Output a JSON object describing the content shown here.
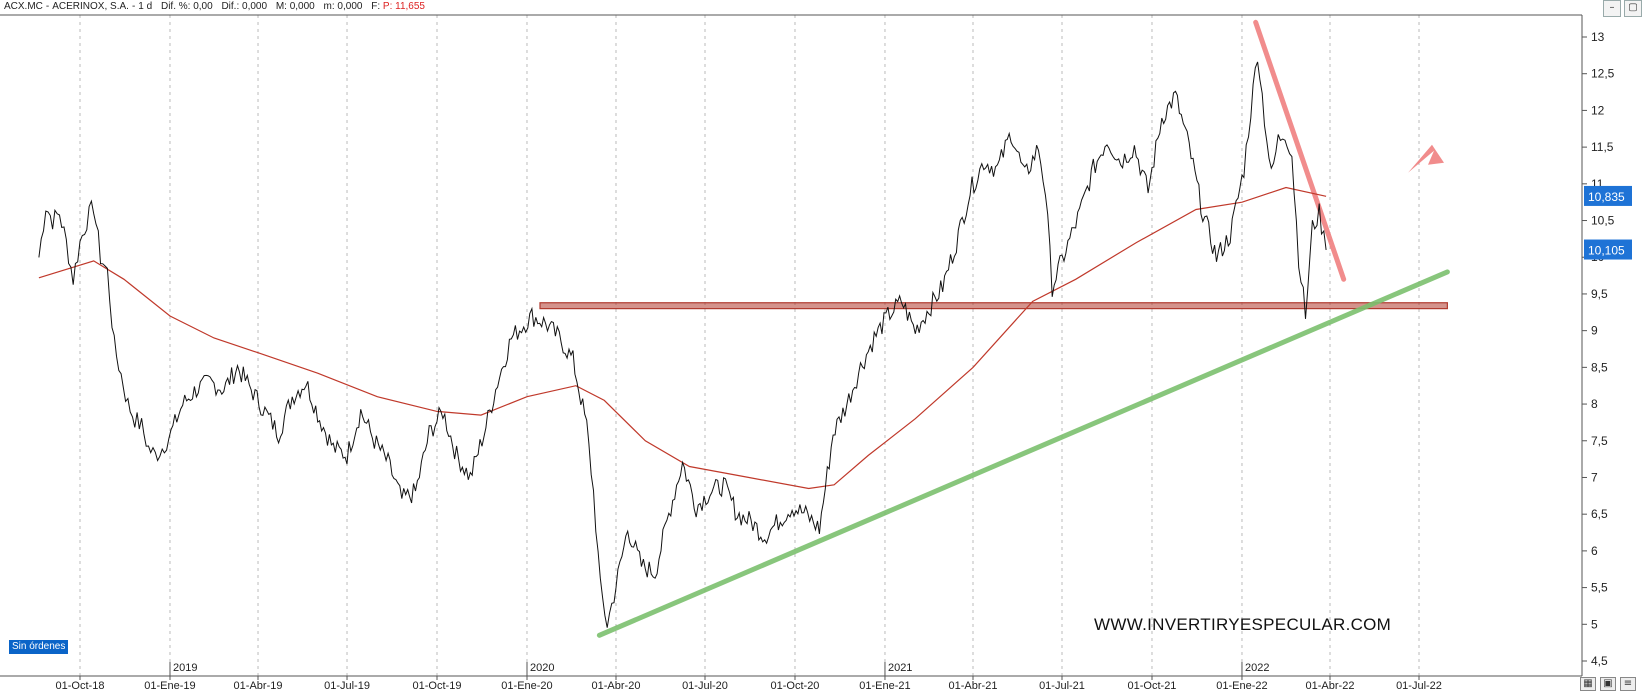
{
  "header": {
    "symbol": "ACX.MC",
    "name": "ACERINOX, S.A.",
    "timeframe": "1 d",
    "dif_pct": "Dif. %: 0,00",
    "dif": "Dif.: 0,000",
    "m": "M: 0,000",
    "m_lower": "m: 0,000",
    "f": "F:",
    "last": "P: 11,655"
  },
  "window_buttons": [
    "–",
    "▢"
  ],
  "badge": "Sin órdenes",
  "watermark": "WWW.INVERTIRYESPECULAR.COM",
  "price_labels": {
    "ma": "10,835",
    "last": "10,105"
  },
  "colors": {
    "price": "#111111",
    "ma": "#c0392b",
    "support_line": "#b03a2e",
    "downtrend": "#f08080",
    "uptrend": "#7cc06e",
    "label_bg": "#1e73d6"
  },
  "chart_data": {
    "type": "line",
    "title": "ACX.MC - ACERINOX, S.A. - 1 d",
    "x_ticks": [
      "01-Oct-18",
      "01-Ene-19",
      "01-Abr-19",
      "01-Jul-19",
      "01-Oct-19",
      "01-Ene-20",
      "01-Abr-20",
      "01-Jul-20",
      "01-Oct-20",
      "01-Ene-21",
      "01-Abr-21",
      "01-Jul-21",
      "01-Oct-21",
      "01-Ene-22",
      "01-Abr-22",
      "01-Jul-22"
    ],
    "year_markers": [
      "2019",
      "2020",
      "2021",
      "2022"
    ],
    "y_ticks": [
      "13",
      "12,5",
      "12",
      "11,5",
      "11",
      "10,5",
      "10",
      "9,5",
      "9",
      "8,5",
      "8",
      "7,5",
      "7",
      "6,5",
      "6",
      "5,5",
      "5",
      "4,5"
    ],
    "ylim": [
      4.4,
      13.3
    ],
    "series": [
      {
        "values": [
          [
            "2018-08-20",
            10.0
          ],
          [
            "2018-08-27",
            10.7
          ],
          [
            "2018-09-03",
            10.5
          ],
          [
            "2018-09-10",
            10.6
          ],
          [
            "2018-09-17",
            10.2
          ],
          [
            "2018-09-24",
            9.7
          ],
          [
            "2018-10-01",
            10.2
          ],
          [
            "2018-10-08",
            10.5
          ],
          [
            "2018-10-15",
            10.7
          ],
          [
            "2018-10-22",
            10.0
          ],
          [
            "2018-10-29",
            9.8
          ],
          [
            "2018-11-05",
            8.8
          ],
          [
            "2018-11-12",
            8.4
          ],
          [
            "2018-11-19",
            8.0
          ],
          [
            "2018-11-26",
            7.8
          ],
          [
            "2018-12-03",
            7.7
          ],
          [
            "2018-12-10",
            7.4
          ],
          [
            "2018-12-17",
            7.3
          ],
          [
            "2018-12-24",
            7.4
          ],
          [
            "2019-01-02",
            7.6
          ],
          [
            "2019-01-14",
            8.0
          ],
          [
            "2019-01-28",
            8.2
          ],
          [
            "2019-02-11",
            8.3
          ],
          [
            "2019-02-25",
            8.2
          ],
          [
            "2019-03-11",
            8.5
          ],
          [
            "2019-03-25",
            8.2
          ],
          [
            "2019-04-08",
            7.9
          ],
          [
            "2019-04-22",
            7.6
          ],
          [
            "2019-05-06",
            8.1
          ],
          [
            "2019-05-20",
            8.3
          ],
          [
            "2019-06-03",
            7.8
          ],
          [
            "2019-06-17",
            7.4
          ],
          [
            "2019-07-01",
            7.3
          ],
          [
            "2019-07-15",
            7.9
          ],
          [
            "2019-07-29",
            7.5
          ],
          [
            "2019-08-12",
            7.2
          ],
          [
            "2019-08-26",
            6.7
          ],
          [
            "2019-09-09",
            6.8
          ],
          [
            "2019-09-23",
            7.6
          ],
          [
            "2019-10-07",
            7.9
          ],
          [
            "2019-10-21",
            7.3
          ],
          [
            "2019-11-04",
            7.0
          ],
          [
            "2019-11-18",
            7.6
          ],
          [
            "2019-12-02",
            8.3
          ],
          [
            "2019-12-16",
            8.9
          ],
          [
            "2020-01-06",
            9.2
          ],
          [
            "2020-01-20",
            9.1
          ],
          [
            "2020-02-03",
            8.9
          ],
          [
            "2020-02-17",
            8.6
          ],
          [
            "2020-03-02",
            7.7
          ],
          [
            "2020-03-09",
            6.8
          ],
          [
            "2020-03-16",
            5.5
          ],
          [
            "2020-03-23",
            5.0
          ],
          [
            "2020-03-30",
            5.4
          ],
          [
            "2020-04-13",
            6.3
          ],
          [
            "2020-04-27",
            5.8
          ],
          [
            "2020-05-11",
            5.7
          ],
          [
            "2020-05-25",
            6.5
          ],
          [
            "2020-06-08",
            7.2
          ],
          [
            "2020-06-22",
            6.6
          ],
          [
            "2020-07-06",
            6.8
          ],
          [
            "2020-07-20",
            6.9
          ],
          [
            "2020-08-03",
            6.5
          ],
          [
            "2020-08-17",
            6.4
          ],
          [
            "2020-08-31",
            6.2
          ],
          [
            "2020-09-14",
            6.4
          ],
          [
            "2020-09-28",
            6.6
          ],
          [
            "2020-10-12",
            6.5
          ],
          [
            "2020-10-26",
            6.3
          ],
          [
            "2020-11-09",
            7.6
          ],
          [
            "2020-11-23",
            8.0
          ],
          [
            "2020-12-07",
            8.5
          ],
          [
            "2020-12-21",
            8.9
          ],
          [
            "2021-01-04",
            9.2
          ],
          [
            "2021-01-18",
            9.4
          ],
          [
            "2021-02-01",
            9.0
          ],
          [
            "2021-02-15",
            9.3
          ],
          [
            "2021-03-01",
            9.6
          ],
          [
            "2021-03-15",
            10.2
          ],
          [
            "2021-03-29",
            10.9
          ],
          [
            "2021-04-12",
            11.3
          ],
          [
            "2021-04-26",
            11.2
          ],
          [
            "2021-05-10",
            11.7
          ],
          [
            "2021-05-24",
            11.1
          ],
          [
            "2021-06-07",
            11.5
          ],
          [
            "2021-06-14",
            10.9
          ],
          [
            "2021-06-21",
            9.6
          ],
          [
            "2021-07-05",
            10.1
          ],
          [
            "2021-07-19",
            10.6
          ],
          [
            "2021-08-02",
            11.2
          ],
          [
            "2021-08-16",
            11.6
          ],
          [
            "2021-08-30",
            11.3
          ],
          [
            "2021-09-13",
            11.5
          ],
          [
            "2021-09-27",
            10.9
          ],
          [
            "2021-10-11",
            11.9
          ],
          [
            "2021-10-25",
            12.2
          ],
          [
            "2021-11-08",
            11.5
          ],
          [
            "2021-11-22",
            10.6
          ],
          [
            "2021-12-06",
            10.0
          ],
          [
            "2021-12-20",
            10.3
          ],
          [
            "2022-01-03",
            11.2
          ],
          [
            "2022-01-10",
            12.0
          ],
          [
            "2022-01-17",
            12.8
          ],
          [
            "2022-01-24",
            11.9
          ],
          [
            "2022-01-31",
            11.1
          ],
          [
            "2022-02-07",
            11.6
          ],
          [
            "2022-02-14",
            11.7
          ],
          [
            "2022-02-21",
            11.4
          ],
          [
            "2022-02-28",
            10.0
          ],
          [
            "2022-03-07",
            9.2
          ],
          [
            "2022-03-14",
            10.4
          ],
          [
            "2022-03-21",
            10.6
          ],
          [
            "2022-03-28",
            10.1
          ]
        ]
      },
      {
        "values": [
          [
            "2018-08-20",
            9.72
          ],
          [
            "2018-10-15",
            9.95
          ],
          [
            "2018-11-15",
            9.7
          ],
          [
            "2019-01-01",
            9.2
          ],
          [
            "2019-02-15",
            8.9
          ],
          [
            "2019-04-01",
            8.7
          ],
          [
            "2019-06-01",
            8.42
          ],
          [
            "2019-08-01",
            8.1
          ],
          [
            "2019-10-01",
            7.9
          ],
          [
            "2019-11-15",
            7.85
          ],
          [
            "2020-01-01",
            8.1
          ],
          [
            "2020-02-20",
            8.25
          ],
          [
            "2020-03-20",
            8.05
          ],
          [
            "2020-05-01",
            7.5
          ],
          [
            "2020-06-15",
            7.15
          ],
          [
            "2020-08-15",
            7.0
          ],
          [
            "2020-10-15",
            6.85
          ],
          [
            "2020-11-10",
            6.9
          ],
          [
            "2020-12-15",
            7.3
          ],
          [
            "2021-02-01",
            7.8
          ],
          [
            "2021-04-01",
            8.5
          ],
          [
            "2021-06-01",
            9.4
          ],
          [
            "2021-07-15",
            9.7
          ],
          [
            "2021-09-15",
            10.2
          ],
          [
            "2021-11-15",
            10.65
          ],
          [
            "2022-01-01",
            10.75
          ],
          [
            "2022-02-15",
            10.95
          ],
          [
            "2022-03-28",
            10.83
          ]
        ]
      }
    ],
    "trendlines": [
      {
        "kind": "horizontal_band",
        "y": [
          9.3,
          9.38
        ],
        "x": [
          "2020-01-01",
          "2022-07-30"
        ]
      },
      {
        "kind": "downtrend",
        "from": [
          "2022-01-15",
          13.2
        ],
        "to": [
          "2022-04-15",
          9.7
        ]
      },
      {
        "kind": "uptrend",
        "from": [
          "2020-03-15",
          4.85
        ],
        "to": [
          "2022-07-30",
          9.8
        ]
      }
    ]
  }
}
